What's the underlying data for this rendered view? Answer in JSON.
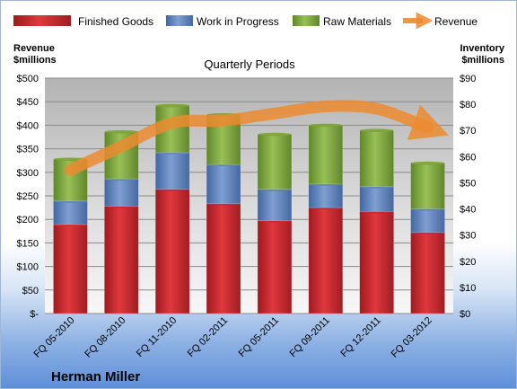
{
  "company": "Herman Miller",
  "chart_data": {
    "type": "bar",
    "stacked": true,
    "title": "Quarterly Periods",
    "categories": [
      "FQ 05-2010",
      "FQ 08-2010",
      "FQ 11-2010",
      "FQ 02-2011",
      "FQ 05-2011",
      "FQ 09-2011",
      "FQ 12-2011",
      "FQ 03-2012"
    ],
    "series": [
      {
        "name": "Finished Goods",
        "color": "#c8262c",
        "values": [
          34,
          41,
          47.5,
          42,
          35.5,
          40.5,
          39,
          31
        ]
      },
      {
        "name": "Work in Progress",
        "color": "#5b7fb9",
        "values": [
          9,
          10.5,
          14,
          15,
          12,
          9,
          9.5,
          9
        ]
      },
      {
        "name": "Raw Materials",
        "color": "#7ca339",
        "values": [
          16,
          18,
          18,
          19,
          21,
          22.5,
          21.5,
          17.5
        ]
      }
    ],
    "line_series": {
      "name": "Revenue",
      "color": "#ec8b2f",
      "values": [
        305,
        355,
        405,
        410,
        425,
        440,
        435,
        395
      ]
    },
    "y_left": {
      "label_line1": "Revenue",
      "label_line2": "$millions",
      "ticks": [
        "$-",
        "$50",
        "$100",
        "$150",
        "$200",
        "$250",
        "$300",
        "$350",
        "$400",
        "$450",
        "$500"
      ],
      "min": 0,
      "max": 500
    },
    "y_right": {
      "label_line1": "Inventory",
      "label_line2": "$millions",
      "ticks": [
        "$0",
        "$10",
        "$20",
        "$30",
        "$40",
        "$50",
        "$60",
        "$70",
        "$80",
        "$90"
      ],
      "min": 0,
      "max": 90
    },
    "legend": "top",
    "grid": true
  }
}
